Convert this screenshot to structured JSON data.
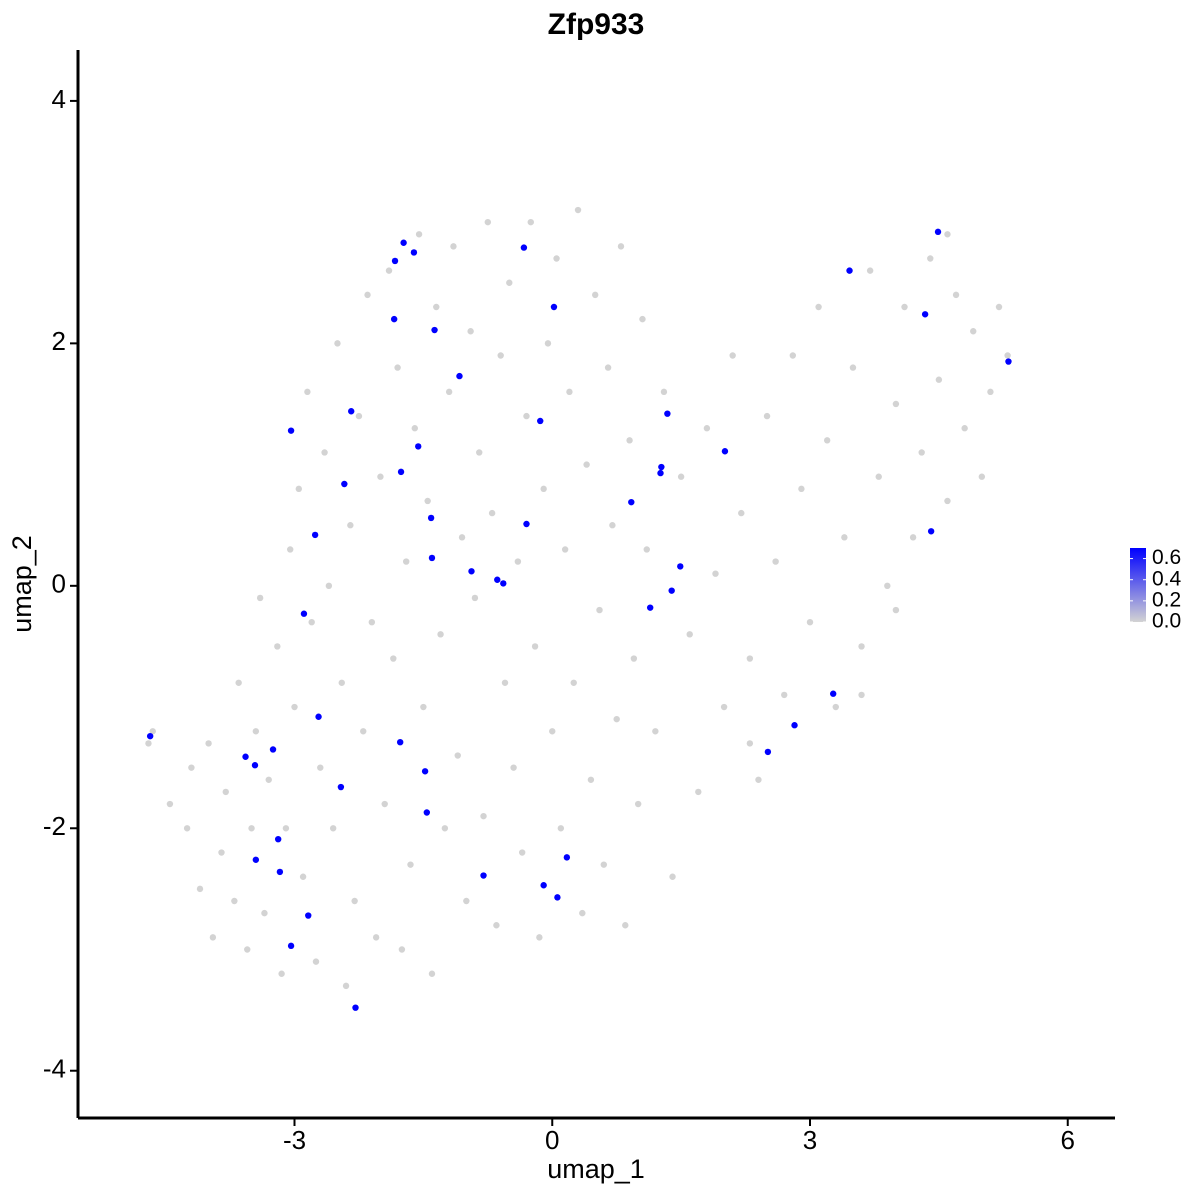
{
  "chart_data": {
    "type": "scatter",
    "title": "Zfp933",
    "x_label": "umap_1",
    "y_label": "umap_2",
    "xlim": [
      -5.52,
      6.55
    ],
    "ylim": [
      -4.39,
      4.42
    ],
    "xticks": [
      -3,
      0,
      3,
      6
    ],
    "yticks": [
      -4,
      -2,
      0,
      2,
      4
    ],
    "series": [
      {
        "color": "#d3d3d3",
        "x": [
          -4.65,
          -4.7,
          -4.45,
          -4.25,
          -4.2,
          -4.1,
          -4.0,
          -3.95,
          -3.85,
          -3.8,
          -3.7,
          -3.65,
          -3.55,
          -3.5,
          -3.45,
          -3.4,
          -3.35,
          -3.3,
          -3.2,
          -3.15,
          -3.1,
          -3.05,
          -3.0,
          -2.95,
          -2.9,
          -2.85,
          -2.8,
          -2.75,
          -2.7,
          -2.65,
          -2.6,
          -2.55,
          -2.5,
          -2.45,
          -2.4,
          -2.35,
          -2.3,
          -2.25,
          -2.2,
          -2.15,
          -2.1,
          -2.05,
          -2.0,
          -1.95,
          -1.9,
          -1.85,
          -1.8,
          -1.75,
          -1.7,
          -1.65,
          -1.6,
          -1.55,
          -1.5,
          -1.45,
          -1.4,
          -1.35,
          -1.3,
          -1.25,
          -1.2,
          -1.15,
          -1.1,
          -1.05,
          -1.0,
          -0.95,
          -0.9,
          -0.85,
          -0.8,
          -0.75,
          -0.7,
          -0.65,
          -0.6,
          -0.55,
          -0.5,
          -0.45,
          -0.4,
          -0.35,
          -0.3,
          -0.25,
          -0.2,
          -0.15,
          -0.1,
          -0.05,
          0.0,
          0.05,
          0.1,
          0.15,
          0.2,
          0.25,
          0.3,
          0.35,
          0.4,
          0.45,
          0.5,
          0.55,
          0.6,
          0.65,
          0.7,
          0.75,
          0.8,
          0.85,
          0.9,
          0.95,
          1.0,
          1.05,
          1.1,
          1.2,
          1.3,
          1.4,
          1.5,
          1.6,
          1.7,
          1.8,
          1.9,
          2.0,
          2.1,
          2.2,
          2.3,
          2.4,
          2.5,
          2.6,
          2.7,
          2.8,
          2.9,
          3.0,
          3.1,
          3.2,
          3.3,
          3.4,
          3.5,
          3.6,
          3.7,
          3.8,
          3.9,
          4.0,
          4.1,
          4.2,
          4.3,
          4.4,
          4.5,
          4.6,
          4.7,
          4.8,
          4.9,
          5.0,
          5.1,
          5.2,
          5.3,
          4.6,
          4.0,
          3.6,
          2.3
        ],
        "values": [
          -1.2,
          -1.3,
          -1.8,
          -2.0,
          -1.5,
          -2.5,
          -1.3,
          -2.9,
          -2.2,
          -1.7,
          -2.6,
          -0.8,
          -3.0,
          -2.0,
          -1.2,
          -0.1,
          -2.7,
          -1.6,
          -0.5,
          -3.2,
          -2.0,
          0.3,
          -1.0,
          0.8,
          -2.4,
          1.6,
          -0.3,
          -3.1,
          -1.5,
          1.1,
          0.0,
          -2.0,
          2.0,
          -0.8,
          -3.3,
          0.5,
          -2.6,
          1.4,
          -1.2,
          2.4,
          -0.3,
          -2.9,
          0.9,
          -1.8,
          2.6,
          -0.6,
          1.8,
          -3.0,
          0.2,
          -2.3,
          1.3,
          2.9,
          -1.0,
          0.7,
          -3.2,
          2.3,
          -0.4,
          -2.0,
          1.6,
          2.8,
          -1.4,
          0.4,
          -2.6,
          2.1,
          -0.1,
          1.1,
          -1.9,
          3.0,
          0.6,
          -2.8,
          1.9,
          -0.8,
          2.5,
          -1.5,
          0.2,
          -2.2,
          1.4,
          3.0,
          -0.5,
          -2.9,
          0.8,
          2.0,
          -1.2,
          2.7,
          -2.0,
          0.3,
          1.6,
          -0.8,
          3.1,
          -2.7,
          1.0,
          -1.6,
          2.4,
          -0.2,
          -2.3,
          1.8,
          0.5,
          -1.1,
          2.8,
          -2.8,
          1.2,
          -0.6,
          -1.8,
          2.2,
          0.3,
          -1.2,
          1.6,
          -2.4,
          0.9,
          -0.4,
          -1.7,
          1.3,
          0.1,
          -1.0,
          1.9,
          0.6,
          -0.6,
          -1.6,
          1.4,
          0.2,
          -0.9,
          1.9,
          0.8,
          -0.3,
          2.3,
          1.2,
          -1.0,
          0.4,
          1.8,
          -0.5,
          2.6,
          0.9,
          0.0,
          1.5,
          2.3,
          0.4,
          1.1,
          2.7,
          1.7,
          0.7,
          2.4,
          1.3,
          2.1,
          0.9,
          1.6,
          2.3,
          1.9,
          2.9,
          -0.2,
          -0.9,
          -1.3
        ]
      },
      {
        "color": "#0000ff",
        "x": [
          -1.73,
          -1.83,
          -1.61,
          -0.33,
          0.02,
          -1.84,
          -1.37,
          -1.08,
          -3.04,
          -2.34,
          -0.14,
          -1.56,
          -1.76,
          -2.42,
          -2.76,
          -1.41,
          -0.3,
          -1.4,
          -0.94,
          -0.64,
          -0.57,
          -2.89,
          1.34,
          2.01,
          1.27,
          1.26,
          0.92,
          1.49,
          1.14,
          1.39,
          3.46,
          4.49,
          4.34,
          5.31,
          4.41,
          3.27,
          2.82,
          2.51,
          -4.68,
          -3.57,
          -3.46,
          -3.25,
          -2.72,
          -2.46,
          -1.77,
          -1.48,
          -1.46,
          -3.19,
          -3.45,
          -3.17,
          -2.84,
          -3.04,
          -2.29,
          -0.8,
          -0.1,
          0.06,
          0.17
        ],
        "values": [
          2.83,
          2.68,
          2.75,
          2.79,
          2.3,
          2.2,
          2.11,
          1.73,
          1.28,
          1.44,
          1.36,
          1.15,
          0.94,
          0.84,
          0.42,
          0.56,
          0.51,
          0.23,
          0.12,
          0.05,
          0.02,
          -0.23,
          1.42,
          1.11,
          0.98,
          0.93,
          0.69,
          0.16,
          -0.18,
          -0.04,
          2.6,
          2.92,
          2.24,
          1.85,
          0.45,
          -0.89,
          -1.15,
          -1.37,
          -1.24,
          -1.41,
          -1.48,
          -1.35,
          -1.08,
          -1.66,
          -1.29,
          -1.53,
          -1.87,
          -2.09,
          -2.26,
          -2.36,
          -2.72,
          -2.97,
          -3.48,
          -2.39,
          -2.47,
          -2.57,
          -2.24
        ]
      }
    ],
    "colorbar": {
      "clim": [
        0,
        0.7
      ],
      "colors": [
        "#d3d3d3",
        "#0000ff"
      ],
      "ticks": [
        {
          "value": 0,
          "label": "0.0"
        },
        {
          "value": 0.2,
          "label": "0.2"
        },
        {
          "value": 0.4,
          "label": "0.4"
        },
        {
          "value": 0.6,
          "label": "0.6"
        }
      ]
    }
  }
}
